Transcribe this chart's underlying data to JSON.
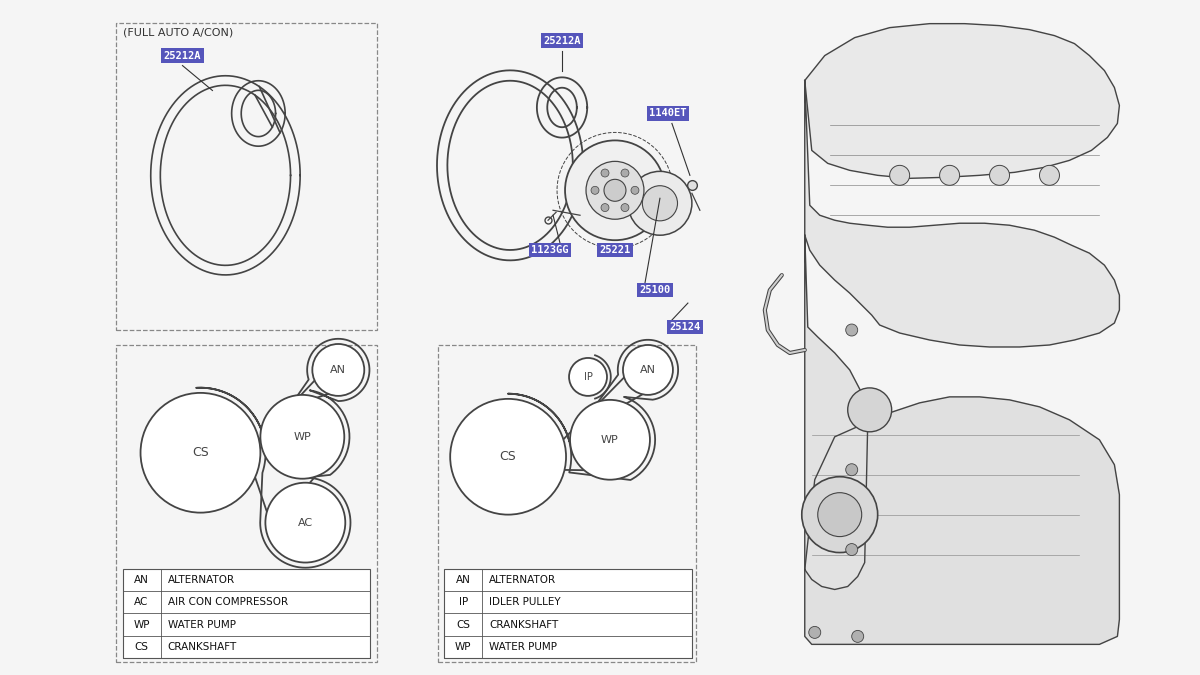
{
  "bg_color": "#f5f5f5",
  "line_color": "#444444",
  "label_bg": "#5555bb",
  "label_fg": "#ffffff",
  "left_legend": [
    [
      "AN",
      "ALTERNATOR"
    ],
    [
      "AC",
      "AIR CON COMPRESSOR"
    ],
    [
      "WP",
      "WATER PUMP"
    ],
    [
      "CS",
      "CRANKSHAFT"
    ]
  ],
  "right_legend": [
    [
      "AN",
      "ALTERNATOR"
    ],
    [
      "IP",
      "IDLER PULLEY"
    ],
    [
      "CS",
      "CRANKSHAFT"
    ],
    [
      "WP",
      "WATER PUMP"
    ]
  ],
  "note_top_left": "(FULL AUTO A/CON)"
}
